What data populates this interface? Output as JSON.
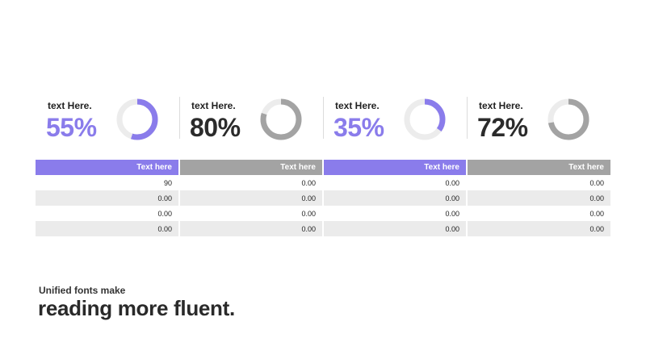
{
  "colors": {
    "accent": "#8a7ceb",
    "gray": "#a3a3a3",
    "ring_track": "#ececec",
    "dark_text": "#2b2b2b"
  },
  "kpis": [
    {
      "label": "text Here.",
      "value": "55%",
      "percent": 55,
      "color": "#8a7ceb",
      "track": "#ececec",
      "text_color": "#8a7ceb"
    },
    {
      "label": "text Here.",
      "value": "80%",
      "percent": 80,
      "color": "#a3a3a3",
      "track": "#ececec",
      "text_color": "#2b2b2b"
    },
    {
      "label": "text Here.",
      "value": "35%",
      "percent": 35,
      "color": "#8a7ceb",
      "track": "#ececec",
      "text_color": "#8a7ceb"
    },
    {
      "label": "text Here.",
      "value": "72%",
      "percent": 72,
      "color": "#a3a3a3",
      "track": "#ececec",
      "text_color": "#2b2b2b"
    }
  ],
  "table": {
    "headers": [
      {
        "label": "Text here",
        "color": "#8a7ceb"
      },
      {
        "label": "Text here",
        "color": "#a3a3a3"
      },
      {
        "label": "Text here",
        "color": "#8a7ceb"
      },
      {
        "label": "Text here",
        "color": "#a3a3a3"
      }
    ],
    "rows": [
      [
        "90",
        "0.00",
        "0.00",
        "0.00"
      ],
      [
        "0.00",
        "0.00",
        "0.00",
        "0.00"
      ],
      [
        "0.00",
        "0.00",
        "0.00",
        "0.00"
      ],
      [
        "0.00",
        "0.00",
        "0.00",
        "0.00"
      ]
    ]
  },
  "caption": {
    "small": "Unified fonts make",
    "big": "reading more fluent."
  }
}
